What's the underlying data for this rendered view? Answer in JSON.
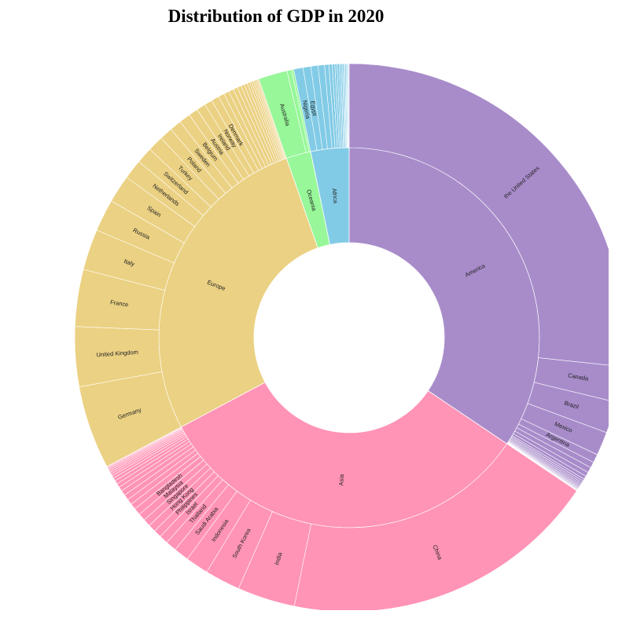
{
  "chart_data": {
    "type": "sunburst",
    "title": "Distribution of GDP in 2020",
    "unit": "",
    "colors": {
      "America": "#a88cca",
      "Asia": "#ff94b6",
      "Europe": "#ebd183",
      "Oceania": "#97f799",
      "Africa": "#82cbe6"
    },
    "regions": [
      {
        "name": "America",
        "countries": [
          {
            "name": "the United States",
            "value": 20.9
          },
          {
            "name": "Canada",
            "value": 1.64
          },
          {
            "name": "Brazil",
            "value": 1.45
          },
          {
            "name": "Mexico",
            "value": 1.09
          },
          {
            "name": "Argentina",
            "value": 0.39
          },
          {
            "name": "",
            "value": 0.27
          },
          {
            "name": "",
            "value": 0.25
          },
          {
            "name": "",
            "value": 0.2
          },
          {
            "name": "",
            "value": 0.15
          },
          {
            "name": "",
            "value": 0.1
          },
          {
            "name": "",
            "value": 0.09
          },
          {
            "name": "",
            "value": 0.08
          },
          {
            "name": "",
            "value": 0.07
          },
          {
            "name": "",
            "value": 0.06
          },
          {
            "name": "",
            "value": 0.05
          },
          {
            "name": "",
            "value": 0.04
          },
          {
            "name": "",
            "value": 0.04
          },
          {
            "name": "",
            "value": 0.03
          },
          {
            "name": "",
            "value": 0.03
          },
          {
            "name": "",
            "value": 0.02
          },
          {
            "name": "",
            "value": 0.02
          }
        ]
      },
      {
        "name": "Asia",
        "countries": [
          {
            "name": "China",
            "value": 14.7
          },
          {
            "name": "India",
            "value": 2.66
          },
          {
            "name": "South Korea",
            "value": 1.63
          },
          {
            "name": "Indonesia",
            "value": 1.06
          },
          {
            "name": "Saudi Arabia",
            "value": 0.7
          },
          {
            "name": "Thailand",
            "value": 0.5
          },
          {
            "name": "Israel",
            "value": 0.4
          },
          {
            "name": "Philippines",
            "value": 0.36
          },
          {
            "name": "Hong Kong",
            "value": 0.35
          },
          {
            "name": "Singapore",
            "value": 0.34
          },
          {
            "name": "Malaysia",
            "value": 0.34
          },
          {
            "name": "Bangladesh",
            "value": 0.32
          },
          {
            "name": "",
            "value": 0.27
          },
          {
            "name": "",
            "value": 0.26
          },
          {
            "name": "",
            "value": 0.25
          },
          {
            "name": "",
            "value": 0.24
          },
          {
            "name": "",
            "value": 0.2
          },
          {
            "name": "",
            "value": 0.18
          },
          {
            "name": "",
            "value": 0.16
          },
          {
            "name": "",
            "value": 0.14
          },
          {
            "name": "",
            "value": 0.12
          },
          {
            "name": "",
            "value": 0.1
          },
          {
            "name": "",
            "value": 0.09
          },
          {
            "name": "",
            "value": 0.08
          },
          {
            "name": "",
            "value": 0.07
          },
          {
            "name": "",
            "value": 0.06
          },
          {
            "name": "",
            "value": 0.05
          },
          {
            "name": "",
            "value": 0.04
          }
        ]
      },
      {
        "name": "Europe",
        "countries": [
          {
            "name": "Germany",
            "value": 3.85
          },
          {
            "name": "United Kingdom",
            "value": 2.76
          },
          {
            "name": "France",
            "value": 2.63
          },
          {
            "name": "Italy",
            "value": 1.89
          },
          {
            "name": "Russia",
            "value": 1.48
          },
          {
            "name": "Spain",
            "value": 1.28
          },
          {
            "name": "Netherlands",
            "value": 0.91
          },
          {
            "name": "Switzerland",
            "value": 0.75
          },
          {
            "name": "Turkey",
            "value": 0.72
          },
          {
            "name": "Poland",
            "value": 0.6
          },
          {
            "name": "Sweden",
            "value": 0.54
          },
          {
            "name": "Belgium",
            "value": 0.52
          },
          {
            "name": "Austria",
            "value": 0.43
          },
          {
            "name": "Ireland",
            "value": 0.42
          },
          {
            "name": "Norway",
            "value": 0.36
          },
          {
            "name": "Denmark",
            "value": 0.36
          },
          {
            "name": "",
            "value": 0.27
          },
          {
            "name": "",
            "value": 0.25
          },
          {
            "name": "",
            "value": 0.23
          },
          {
            "name": "",
            "value": 0.2
          },
          {
            "name": "",
            "value": 0.18
          },
          {
            "name": "",
            "value": 0.16
          },
          {
            "name": "",
            "value": 0.14
          },
          {
            "name": "",
            "value": 0.12
          },
          {
            "name": "",
            "value": 0.1
          },
          {
            "name": "",
            "value": 0.09
          },
          {
            "name": "",
            "value": 0.08
          },
          {
            "name": "",
            "value": 0.07
          },
          {
            "name": "",
            "value": 0.06
          },
          {
            "name": "",
            "value": 0.05
          }
        ]
      },
      {
        "name": "Oceania",
        "countries": [
          {
            "name": "Australia",
            "value": 1.33
          },
          {
            "name": "",
            "value": 0.21
          },
          {
            "name": "",
            "value": 0.1
          }
        ]
      },
      {
        "name": "Africa",
        "countries": [
          {
            "name": "Nigeria",
            "value": 0.43
          },
          {
            "name": "Egypt",
            "value": 0.36
          },
          {
            "name": "",
            "value": 0.33
          },
          {
            "name": "",
            "value": 0.3
          },
          {
            "name": "",
            "value": 0.2
          },
          {
            "name": "",
            "value": 0.15
          },
          {
            "name": "",
            "value": 0.12
          },
          {
            "name": "",
            "value": 0.1
          },
          {
            "name": "",
            "value": 0.1
          },
          {
            "name": "",
            "value": 0.08
          },
          {
            "name": "",
            "value": 0.07
          },
          {
            "name": "",
            "value": 0.06
          },
          {
            "name": "",
            "value": 0.05
          },
          {
            "name": "",
            "value": 0.05
          },
          {
            "name": "",
            "value": 0.04
          },
          {
            "name": "",
            "value": 0.04
          },
          {
            "name": "",
            "value": 0.03
          },
          {
            "name": "",
            "value": 0.03
          }
        ]
      }
    ]
  }
}
